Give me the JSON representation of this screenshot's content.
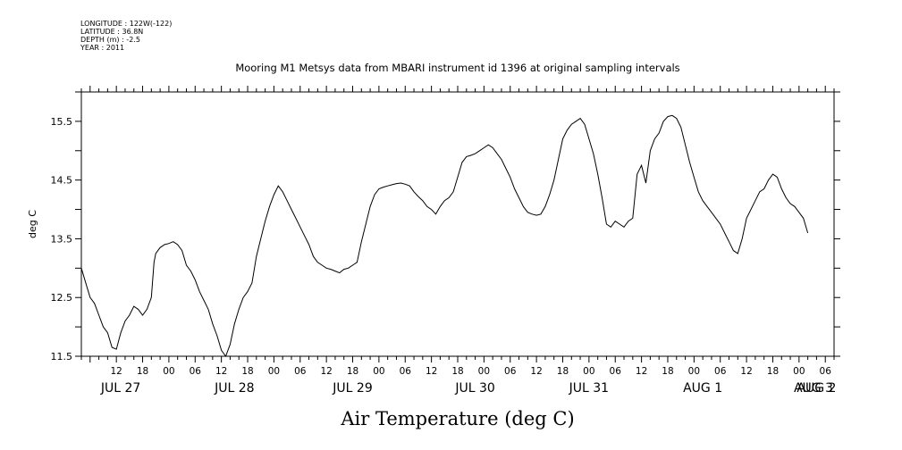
{
  "meta": {
    "longitude": "LONGITUDE : 122W(-122)",
    "latitude": "LATITUDE : 36.8N",
    "depth": "DEPTH (m) : -2.5",
    "year": "YEAR : 2011"
  },
  "chart_data": {
    "type": "line",
    "title": "Mooring M1 Metsys data from MBARI instrument id 1396 at original sampling intervals",
    "xlabel": "Air Temperature (deg C)",
    "ylabel": "deg C",
    "ylim": [
      11.5,
      16.0
    ],
    "xlim_hours": [
      4,
      176
    ],
    "y_ticks": [
      "11.5",
      "12.5",
      "13.5",
      "14.5",
      "15.5"
    ],
    "hour_ticks": [
      "12",
      "18",
      "00",
      "06",
      "12",
      "18",
      "00",
      "06",
      "12",
      "18",
      "00",
      "06",
      "12",
      "18",
      "00",
      "06",
      "12",
      "18",
      "00",
      "06",
      "12",
      "18",
      "00",
      "06",
      "12",
      "18",
      "00",
      "06"
    ],
    "day_labels": [
      "JUL 27",
      "JUL 28",
      "JUL 29",
      "JUL 30",
      "JUL 31",
      "AUG  1",
      "AUG  2",
      "AUG  3"
    ],
    "grid": false,
    "series": [
      {
        "values": [
          [
            4,
            13.0
          ],
          [
            5,
            12.75
          ],
          [
            6,
            12.5
          ],
          [
            7,
            12.4
          ],
          [
            8,
            12.2
          ],
          [
            9,
            12.0
          ],
          [
            10,
            11.9
          ],
          [
            11,
            11.65
          ],
          [
            12,
            11.62
          ],
          [
            13,
            11.9
          ],
          [
            14,
            12.1
          ],
          [
            15,
            12.2
          ],
          [
            16,
            12.35
          ],
          [
            17,
            12.3
          ],
          [
            18,
            12.2
          ],
          [
            19,
            12.3
          ],
          [
            20,
            12.5
          ],
          [
            20.6,
            13.1
          ],
          [
            21,
            13.25
          ],
          [
            22,
            13.35
          ],
          [
            23,
            13.4
          ],
          [
            24,
            13.42
          ],
          [
            25,
            13.45
          ],
          [
            26,
            13.4
          ],
          [
            27,
            13.3
          ],
          [
            28,
            13.05
          ],
          [
            29,
            12.95
          ],
          [
            30,
            12.8
          ],
          [
            31,
            12.6
          ],
          [
            32,
            12.45
          ],
          [
            33,
            12.3
          ],
          [
            34,
            12.05
          ],
          [
            35,
            11.85
          ],
          [
            36,
            11.6
          ],
          [
            37,
            11.5
          ],
          [
            38,
            11.7
          ],
          [
            39,
            12.05
          ],
          [
            40,
            12.3
          ],
          [
            41,
            12.5
          ],
          [
            42,
            12.6
          ],
          [
            43,
            12.75
          ],
          [
            44,
            13.2
          ],
          [
            45,
            13.5
          ],
          [
            46,
            13.8
          ],
          [
            47,
            14.05
          ],
          [
            48,
            14.25
          ],
          [
            49,
            14.4
          ],
          [
            50,
            14.3
          ],
          [
            51,
            14.15
          ],
          [
            52,
            14.0
          ],
          [
            53,
            13.85
          ],
          [
            54,
            13.7
          ],
          [
            55,
            13.55
          ],
          [
            56,
            13.4
          ],
          [
            57,
            13.2
          ],
          [
            58,
            13.1
          ],
          [
            59,
            13.05
          ],
          [
            60,
            13.0
          ],
          [
            61,
            12.98
          ],
          [
            62,
            12.95
          ],
          [
            63,
            12.92
          ],
          [
            64,
            12.98
          ],
          [
            65,
            13.0
          ],
          [
            66,
            13.05
          ],
          [
            67,
            13.1
          ],
          [
            68,
            13.45
          ],
          [
            69,
            13.75
          ],
          [
            70,
            14.05
          ],
          [
            71,
            14.25
          ],
          [
            72,
            14.35
          ],
          [
            73,
            14.38
          ],
          [
            74,
            14.4
          ],
          [
            75,
            14.42
          ],
          [
            76,
            14.44
          ],
          [
            77,
            14.45
          ],
          [
            78,
            14.43
          ],
          [
            79,
            14.4
          ],
          [
            80,
            14.3
          ],
          [
            81,
            14.22
          ],
          [
            82,
            14.15
          ],
          [
            83,
            14.05
          ],
          [
            84,
            14.0
          ],
          [
            85,
            13.92
          ],
          [
            86,
            14.05
          ],
          [
            87,
            14.15
          ],
          [
            88,
            14.2
          ],
          [
            89,
            14.3
          ],
          [
            90,
            14.55
          ],
          [
            91,
            14.8
          ],
          [
            92,
            14.9
          ],
          [
            93,
            14.92
          ],
          [
            94,
            14.95
          ],
          [
            95,
            15.0
          ],
          [
            96,
            15.05
          ],
          [
            97,
            15.1
          ],
          [
            98,
            15.05
          ],
          [
            99,
            14.95
          ],
          [
            100,
            14.85
          ],
          [
            101,
            14.7
          ],
          [
            102,
            14.55
          ],
          [
            103,
            14.35
          ],
          [
            104,
            14.2
          ],
          [
            105,
            14.05
          ],
          [
            106,
            13.95
          ],
          [
            107,
            13.92
          ],
          [
            108,
            13.9
          ],
          [
            109,
            13.92
          ],
          [
            110,
            14.05
          ],
          [
            111,
            14.25
          ],
          [
            112,
            14.5
          ],
          [
            113,
            14.85
          ],
          [
            114,
            15.2
          ],
          [
            115,
            15.35
          ],
          [
            116,
            15.45
          ],
          [
            117,
            15.5
          ],
          [
            118,
            15.55
          ],
          [
            119,
            15.45
          ],
          [
            120,
            15.2
          ],
          [
            121,
            14.95
          ],
          [
            122,
            14.6
          ],
          [
            123,
            14.2
          ],
          [
            124,
            13.75
          ],
          [
            125,
            13.7
          ],
          [
            126,
            13.8
          ],
          [
            127,
            13.75
          ],
          [
            128,
            13.7
          ],
          [
            129,
            13.8
          ],
          [
            130,
            13.85
          ],
          [
            131,
            14.6
          ],
          [
            132,
            14.75
          ],
          [
            133,
            14.45
          ],
          [
            134,
            15.0
          ],
          [
            135,
            15.2
          ],
          [
            136,
            15.3
          ],
          [
            137,
            15.5
          ],
          [
            138,
            15.58
          ],
          [
            139,
            15.6
          ],
          [
            140,
            15.55
          ],
          [
            141,
            15.4
          ],
          [
            142,
            15.1
          ],
          [
            143,
            14.8
          ],
          [
            144,
            14.55
          ],
          [
            145,
            14.3
          ],
          [
            146,
            14.15
          ],
          [
            147,
            14.05
          ],
          [
            148,
            13.95
          ],
          [
            149,
            13.85
          ],
          [
            150,
            13.75
          ],
          [
            151,
            13.6
          ],
          [
            152,
            13.45
          ],
          [
            153,
            13.3
          ],
          [
            154,
            13.25
          ],
          [
            155,
            13.5
          ],
          [
            156,
            13.85
          ],
          [
            157,
            14.0
          ],
          [
            158,
            14.15
          ],
          [
            159,
            14.3
          ],
          [
            160,
            14.35
          ],
          [
            161,
            14.5
          ],
          [
            162,
            14.6
          ],
          [
            163,
            14.55
          ],
          [
            164,
            14.35
          ],
          [
            165,
            14.2
          ],
          [
            166,
            14.1
          ],
          [
            167,
            14.05
          ],
          [
            168,
            13.95
          ],
          [
            169,
            13.85
          ],
          [
            170,
            13.6
          ]
        ]
      }
    ]
  }
}
